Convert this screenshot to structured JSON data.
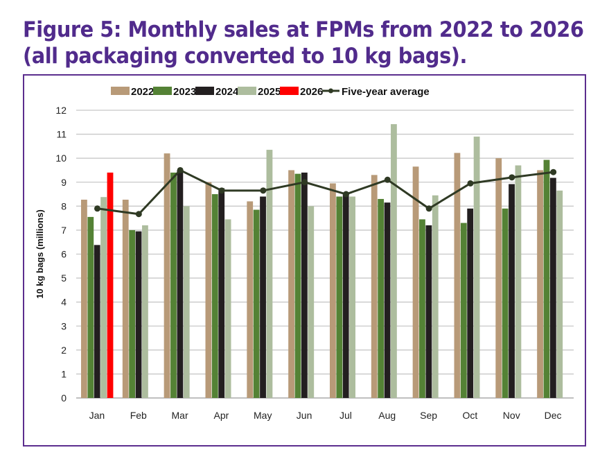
{
  "title_line1": "Figure 5: Monthly sales at FPMs from 2022 to 2026",
  "title_line2": "(all packaging converted to 10 kg bags).",
  "chart_data": {
    "type": "bar",
    "title": "Figure 5: Monthly sales at FPMs from 2022 to 2026 (all packaging converted to 10 kg bags).",
    "xlabel": "",
    "ylabel": "10 kg bags (millions)",
    "ylim": [
      0,
      12
    ],
    "yticks": [
      "0",
      "1",
      "2",
      "3",
      "4",
      "5",
      "6",
      "7",
      "8",
      "9",
      "10",
      "11",
      "12"
    ],
    "grid": true,
    "legend_position": "top",
    "categories": [
      "Jan",
      "Feb",
      "Mar",
      "Apr",
      "May",
      "Jun",
      "Jul",
      "Aug",
      "Sep",
      "Oct",
      "Nov",
      "Dec"
    ],
    "series": [
      {
        "name": "2022",
        "color": "#b89a78",
        "values": [
          8.27,
          8.27,
          10.2,
          9.0,
          8.2,
          9.5,
          8.95,
          9.3,
          9.65,
          10.22,
          10.0,
          9.5
        ]
      },
      {
        "name": "2023",
        "color": "#548235",
        "values": [
          7.55,
          7.0,
          9.4,
          8.5,
          7.85,
          9.35,
          8.4,
          8.3,
          7.45,
          7.3,
          7.9,
          9.93
        ]
      },
      {
        "name": "2024",
        "color": "#231f20",
        "values": [
          6.38,
          6.95,
          9.5,
          8.75,
          8.4,
          9.4,
          8.5,
          8.15,
          7.2,
          7.9,
          8.92,
          9.18
        ]
      },
      {
        "name": "2025",
        "color": "#adbd9e",
        "values": [
          8.38,
          7.2,
          8.0,
          7.45,
          10.35,
          8.0,
          8.4,
          11.42,
          8.45,
          10.9,
          9.7,
          8.65
        ]
      },
      {
        "name": "2026",
        "color": "#ff0000",
        "values": [
          9.4,
          null,
          null,
          null,
          null,
          null,
          null,
          null,
          null,
          null,
          null,
          null
        ]
      },
      {
        "name": "Five-year average",
        "type": "line",
        "color": "#2f3a24",
        "values": [
          7.9,
          7.67,
          9.5,
          8.65,
          8.65,
          9.0,
          8.5,
          9.1,
          7.9,
          8.95,
          9.2,
          9.42
        ]
      }
    ]
  }
}
